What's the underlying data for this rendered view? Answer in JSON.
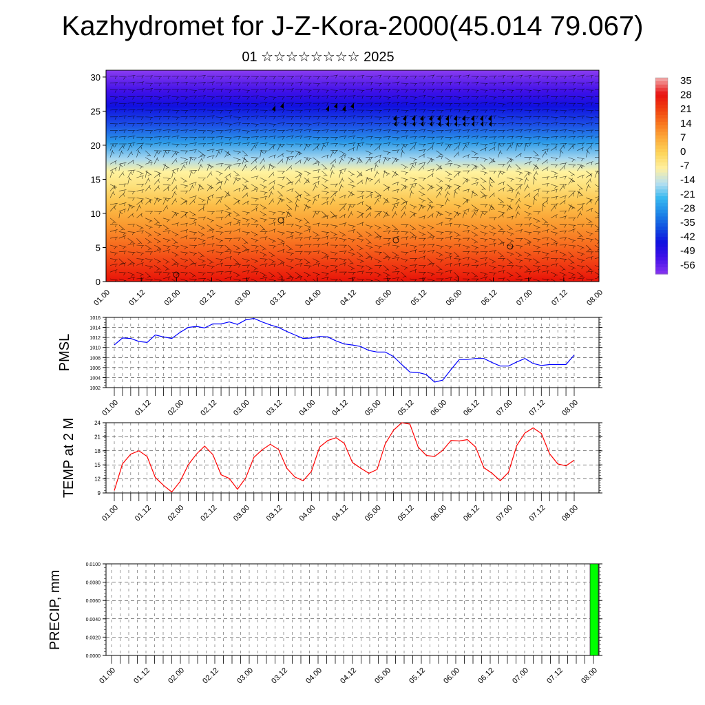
{
  "title": "Kazhydromet for J-Z-Kora-2000(45.014 79.067)",
  "subtitle": "01 ☆☆☆☆☆☆☆☆ 2025",
  "colors": {
    "pmsl_line": "#0000ff",
    "temp_line": "#ff0000",
    "precip_bar": "#00ff00",
    "wind_barb": "#000000"
  },
  "colorbar": {
    "labels": [
      "35",
      "28",
      "21",
      "14",
      "7",
      "0",
      "-7",
      "-14",
      "-21",
      "-28",
      "-35",
      "-42",
      "-49",
      "-56"
    ],
    "stops": [
      "#f2a0a0",
      "#e81010",
      "#f04010",
      "#f87820",
      "#fcac3c",
      "#fdd65c",
      "#fff0a0",
      "#b8e0f0",
      "#38b8f0",
      "#1e88e8",
      "#1050e0",
      "#1010e0",
      "#4010e8",
      "#8030f0"
    ]
  },
  "chart_data": [
    {
      "type": "heatmap",
      "name": "wind-temperature-cross-section",
      "y_ticks": [
        "0",
        "5",
        "10",
        "15",
        "20",
        "25",
        "30"
      ],
      "ylim": [
        0,
        31
      ],
      "x_ticks": [
        "01.00",
        "01.12",
        "02.00",
        "02.12",
        "03.00",
        "03.12",
        "04.00",
        "04.12",
        "05.00",
        "05.12",
        "06.00",
        "06.12",
        "07.00",
        "07.12",
        "08.00"
      ],
      "temperature_bands_by_level": [
        {
          "level": 0,
          "value": 25
        },
        {
          "level": 3,
          "value": 17
        },
        {
          "level": 6,
          "value": 11
        },
        {
          "level": 9,
          "value": 5
        },
        {
          "level": 12,
          "value": -2
        },
        {
          "level": 15,
          "value": -10
        },
        {
          "level": 18,
          "value": -20
        },
        {
          "level": 21,
          "value": -32
        },
        {
          "level": 24,
          "value": -46
        },
        {
          "level": 27,
          "value": -54
        },
        {
          "level": 31,
          "value": -58
        }
      ]
    },
    {
      "type": "line",
      "name": "PMSL",
      "ylabel": "PMSL",
      "ylim": [
        1002,
        1016
      ],
      "y_ticks": [
        "1016",
        "1014",
        "1012",
        "1010",
        "1008",
        "1006",
        "1004",
        "1002"
      ],
      "x_ticks": [
        "01.00",
        "01.12",
        "02.00",
        "02.12",
        "03.00",
        "03.12",
        "04.00",
        "04.12",
        "05.00",
        "05.12",
        "06.00",
        "06.12",
        "07.00",
        "07.12",
        "08.00"
      ],
      "x_step_hours": 3,
      "values": [
        1010.5,
        1011.9,
        1011.8,
        1011.2,
        1011.0,
        1012.5,
        1012.1,
        1011.8,
        1013.0,
        1014.0,
        1014.2,
        1013.9,
        1014.7,
        1014.7,
        1015.1,
        1014.6,
        1015.5,
        1015.8,
        1015.1,
        1014.5,
        1014.0,
        1013.2,
        1012.5,
        1011.8,
        1011.9,
        1012.2,
        1012.1,
        1011.3,
        1010.7,
        1010.5,
        1010.2,
        1009.4,
        1009.1,
        1009.1,
        1008.2,
        1006.6,
        1005.1,
        1005.0,
        1004.6,
        1003.1,
        1003.5,
        1005.6,
        1007.6,
        1007.6,
        1007.8,
        1007.8,
        1007.0,
        1006.3,
        1006.3,
        1007.1,
        1007.8,
        1006.8,
        1006.4,
        1006.6,
        1006.6,
        1006.6,
        1008.5
      ]
    },
    {
      "type": "line",
      "name": "TEMP at 2 M",
      "ylabel": "TEMP at 2 M",
      "ylim": [
        9,
        24
      ],
      "y_ticks": [
        "24",
        "21",
        "18",
        "15",
        "12",
        "9"
      ],
      "x_ticks": [
        "01.00",
        "01.12",
        "02.00",
        "02.12",
        "03.00",
        "03.12",
        "04.00",
        "04.12",
        "05.00",
        "05.12",
        "06.00",
        "06.12",
        "07.00",
        "07.12",
        "08.00"
      ],
      "x_step_hours": 3,
      "values": [
        9.5,
        15.2,
        17.3,
        18.0,
        16.8,
        12.3,
        10.6,
        9.2,
        11.4,
        15.0,
        17.3,
        19.0,
        17.2,
        12.9,
        12.1,
        9.8,
        12.2,
        16.6,
        18.2,
        19.4,
        18.3,
        14.3,
        12.4,
        11.6,
        13.6,
        18.8,
        20.2,
        20.8,
        19.6,
        15.5,
        14.3,
        13.2,
        14.0,
        19.5,
        22.4,
        24.0,
        23.7,
        18.8,
        17.0,
        16.8,
        18.1,
        20.2,
        20.1,
        20.4,
        18.8,
        14.4,
        13.2,
        11.6,
        13.4,
        19.1,
        21.8,
        22.9,
        21.7,
        17.4,
        15.2,
        14.8,
        16.0
      ]
    },
    {
      "type": "bar",
      "name": "PRECIP, mm",
      "ylabel": "PRECIP, mm",
      "ylim": [
        0,
        0.01
      ],
      "y_ticks": [
        "0.0100",
        "0.0080",
        "0.0060",
        "0.0040",
        "0.0020",
        "0.0000"
      ],
      "x_ticks": [
        "01.00",
        "01.12",
        "02.00",
        "02.12",
        "03.00",
        "03.12",
        "04.00",
        "04.12",
        "05.00",
        "05.12",
        "06.00",
        "06.12",
        "07.00",
        "07.12",
        "08.00"
      ],
      "bars": [
        {
          "x": "08.00",
          "value": 0.01
        }
      ]
    }
  ]
}
